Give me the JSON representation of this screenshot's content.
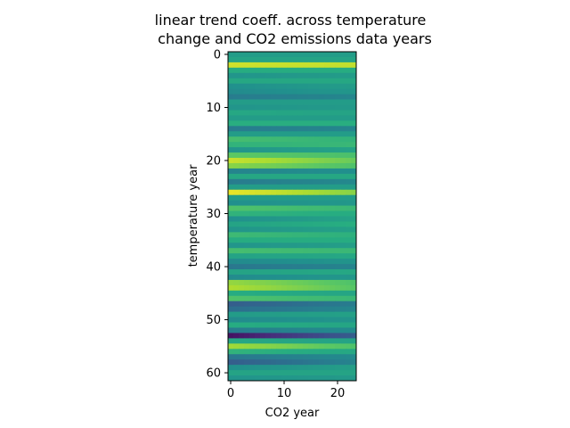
{
  "chart_data": {
    "type": "heatmap",
    "title_line1": "linear trend coeff. across temperature",
    "title_line2": "change and CO2 emissions data years",
    "xlabel": "CO2 year",
    "ylabel": "temperature year",
    "xlim": [
      -0.5,
      23.5
    ],
    "ylim": [
      61.5,
      -0.5
    ],
    "n_cols": 24,
    "n_rows": 62,
    "x_ticks": [
      0,
      10,
      20
    ],
    "y_ticks": [
      0,
      10,
      20,
      30,
      40,
      50,
      60
    ],
    "colormap": "viridis",
    "row_profiles": [
      [
        0.55,
        0.0
      ],
      [
        0.58,
        0.0
      ],
      [
        0.93,
        -0.02
      ],
      [
        0.62,
        0.0
      ],
      [
        0.52,
        0.03
      ],
      [
        0.6,
        0.0
      ],
      [
        0.5,
        0.05
      ],
      [
        0.48,
        0.05
      ],
      [
        0.42,
        0.04
      ],
      [
        0.55,
        0.0
      ],
      [
        0.52,
        0.02
      ],
      [
        0.6,
        -0.02
      ],
      [
        0.55,
        0.0
      ],
      [
        0.63,
        0.0
      ],
      [
        0.42,
        0.04
      ],
      [
        0.55,
        0.0
      ],
      [
        0.7,
        -0.05
      ],
      [
        0.65,
        0.02
      ],
      [
        0.52,
        0.06
      ],
      [
        0.75,
        -0.04
      ],
      [
        0.92,
        -0.15
      ],
      [
        0.82,
        -0.1
      ],
      [
        0.45,
        0.05
      ],
      [
        0.6,
        0.0
      ],
      [
        0.42,
        0.05
      ],
      [
        0.55,
        0.0
      ],
      [
        0.97,
        -0.15
      ],
      [
        0.55,
        0.0
      ],
      [
        0.5,
        0.03
      ],
      [
        0.72,
        -0.05
      ],
      [
        0.65,
        -0.03
      ],
      [
        0.5,
        0.08
      ],
      [
        0.58,
        0.05
      ],
      [
        0.52,
        0.05
      ],
      [
        0.68,
        -0.04
      ],
      [
        0.62,
        0.0
      ],
      [
        0.52,
        0.04
      ],
      [
        0.7,
        -0.03
      ],
      [
        0.58,
        0.02
      ],
      [
        0.48,
        0.04
      ],
      [
        0.4,
        0.05
      ],
      [
        0.58,
        0.02
      ],
      [
        0.48,
        0.05
      ],
      [
        0.84,
        -0.12
      ],
      [
        0.88,
        -0.14
      ],
      [
        0.62,
        -0.03
      ],
      [
        0.72,
        -0.05
      ],
      [
        0.3,
        0.12
      ],
      [
        0.36,
        0.1
      ],
      [
        0.55,
        0.02
      ],
      [
        0.48,
        0.04
      ],
      [
        0.62,
        -0.03
      ],
      [
        0.42,
        0.06
      ],
      [
        0.05,
        0.25
      ],
      [
        0.6,
        -0.02
      ],
      [
        0.86,
        -0.14
      ],
      [
        0.65,
        -0.05
      ],
      [
        0.4,
        0.08
      ],
      [
        0.3,
        0.15
      ],
      [
        0.5,
        0.06
      ],
      [
        0.58,
        0.0
      ],
      [
        0.52,
        0.02
      ]
    ]
  }
}
